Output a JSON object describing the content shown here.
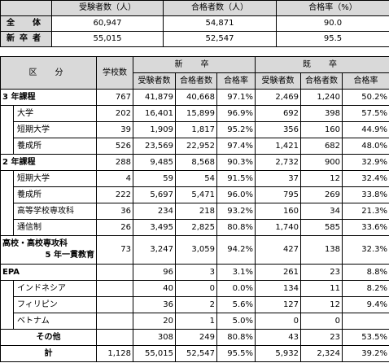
{
  "summary": {
    "headers": [
      "受験者数（人）",
      "合格者数（人）",
      "合格率（%）"
    ],
    "rows": [
      {
        "label": "全　体",
        "values": [
          "60,947",
          "54,871",
          "90.0"
        ]
      },
      {
        "label": "新卒者",
        "values": [
          "55,015",
          "52,547",
          "95.5"
        ]
      }
    ]
  },
  "detail": {
    "col_kubun": "区　分",
    "col_schools": "学校数",
    "group_new": "新　卒",
    "group_old": "既　卒",
    "sub_headers": [
      "受験者数",
      "合格者数",
      "合格率",
      "受験者数",
      "合格者数",
      "合格率"
    ],
    "rows": [
      {
        "label": "3 年課程",
        "values": [
          "767",
          "41,879",
          "40,668",
          "97.1%",
          "2,469",
          "1,240",
          "50.2%"
        ]
      },
      {
        "label": "大学",
        "values": [
          "202",
          "16,401",
          "15,899",
          "96.9%",
          "692",
          "398",
          "57.5%"
        ]
      },
      {
        "label": "短期大学",
        "values": [
          "39",
          "1,909",
          "1,817",
          "95.2%",
          "356",
          "160",
          "44.9%"
        ]
      },
      {
        "label": "養成所",
        "values": [
          "526",
          "23,569",
          "22,952",
          "97.4%",
          "1,421",
          "682",
          "48.0%"
        ]
      },
      {
        "label": "2 年課程",
        "values": [
          "288",
          "9,485",
          "8,568",
          "90.3%",
          "2,732",
          "900",
          "32.9%"
        ]
      },
      {
        "label": "短期大学",
        "values": [
          "4",
          "59",
          "54",
          "91.5%",
          "37",
          "12",
          "32.4%"
        ]
      },
      {
        "label": "養成所",
        "values": [
          "222",
          "5,697",
          "5,471",
          "96.0%",
          "795",
          "269",
          "33.8%"
        ]
      },
      {
        "label": "高等学校専攻科",
        "values": [
          "36",
          "234",
          "218",
          "93.2%",
          "160",
          "34",
          "21.3%"
        ]
      },
      {
        "label": "通信制",
        "values": [
          "26",
          "3,495",
          "2,825",
          "80.8%",
          "1,740",
          "585",
          "33.6%"
        ]
      },
      {
        "label_line1": "高校・高校専攻科",
        "label_line2": "5 年一貫教育",
        "values": [
          "73",
          "3,247",
          "3,059",
          "94.2%",
          "427",
          "138",
          "32.3%"
        ]
      },
      {
        "label": "EPA",
        "values": [
          "",
          "96",
          "3",
          "3.1%",
          "261",
          "23",
          "8.8%"
        ]
      },
      {
        "label": "インドネシア",
        "values": [
          "",
          "40",
          "0",
          "0.0%",
          "134",
          "11",
          "8.2%"
        ]
      },
      {
        "label": "フィリピン",
        "values": [
          "",
          "36",
          "2",
          "5.6%",
          "127",
          "12",
          "9.4%"
        ]
      },
      {
        "label": "ベトナム",
        "values": [
          "",
          "20",
          "1",
          "5.0%",
          "0",
          "0",
          ""
        ]
      },
      {
        "label": "その他",
        "values": [
          "",
          "308",
          "249",
          "80.8%",
          "43",
          "23",
          "53.5%"
        ]
      },
      {
        "label": "計",
        "values": [
          "1,128",
          "55,015",
          "52,547",
          "95.5%",
          "5,932",
          "2,324",
          "39.2%"
        ]
      }
    ]
  }
}
